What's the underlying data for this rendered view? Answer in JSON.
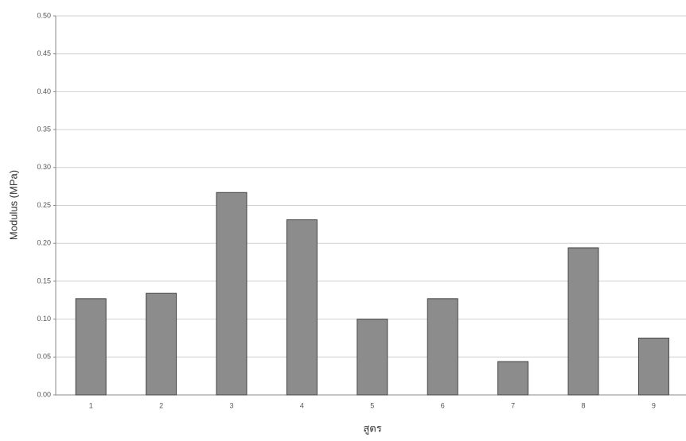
{
  "chart_data": {
    "type": "bar",
    "x_label": "สูตร",
    "y_label": "Modulus (MPa)",
    "categories": [
      "1",
      "2",
      "3",
      "4",
      "5",
      "6",
      "7",
      "8",
      "9"
    ],
    "values": [
      0.127,
      0.134,
      0.267,
      0.231,
      0.1,
      0.127,
      0.044,
      0.194,
      0.075
    ],
    "color": "#8c8c8c",
    "ylim": [
      0,
      0.5
    ],
    "yticks": [
      {
        "value": 0,
        "label": "0.00"
      },
      {
        "value": 0.05,
        "label": "0.05"
      },
      {
        "value": 0.1,
        "label": "0.10"
      },
      {
        "value": 0.15,
        "label": "0.15"
      },
      {
        "value": 0.2,
        "label": "0.20"
      },
      {
        "value": 0.25,
        "label": "0.25"
      },
      {
        "value": 0.3,
        "label": "0.30"
      },
      {
        "value": 0.35,
        "label": "0.35"
      },
      {
        "value": 0.4,
        "label": "0.40"
      },
      {
        "value": 0.45,
        "label": "0.45"
      },
      {
        "value": 0.5,
        "label": "0.50"
      }
    ],
    "grid": true
  }
}
